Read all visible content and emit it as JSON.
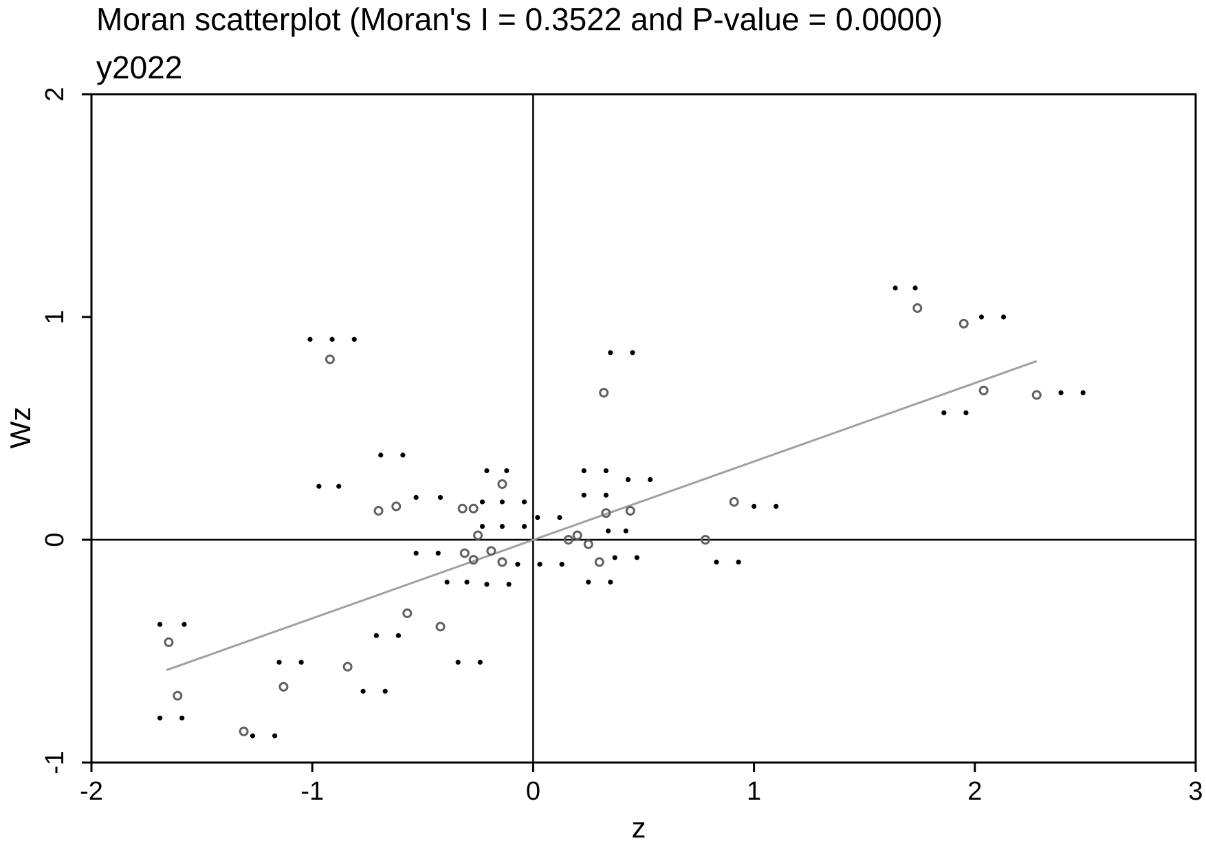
{
  "chart_data": {
    "type": "scatter",
    "title": "Moran scatterplot (Moran's I = 0.3522 and P-value = 0.0000)",
    "subtitle": "y2022",
    "xlabel": "z",
    "ylabel": "Wz",
    "xlim": [
      -2,
      3
    ],
    "ylim": [
      -1,
      2
    ],
    "x_ticks": [
      "-2",
      "-1",
      "0",
      "1",
      "2",
      "3"
    ],
    "y_ticks": [
      "-1",
      "0",
      "1",
      "2"
    ],
    "reference_lines": {
      "x": 0,
      "y": 0
    },
    "fit_line": {
      "x": [
        -1.66,
        2.28
      ],
      "y": [
        -0.585,
        0.802
      ],
      "slope": 0.3522
    },
    "grid": false,
    "legend": "none",
    "colors": {
      "dots": "#000000",
      "circles": "#606060",
      "fit_line": "#a0a0a0",
      "axes": "#000000"
    },
    "series": [
      {
        "marker": "dot",
        "points": [
          [
            -1.69,
            -0.38
          ],
          [
            -1.58,
            -0.38
          ],
          [
            -1.69,
            -0.8
          ],
          [
            -1.59,
            -0.8
          ],
          [
            -1.15,
            -0.55
          ],
          [
            -1.05,
            -0.55
          ],
          [
            -1.27,
            -0.88
          ],
          [
            -1.17,
            -0.88
          ],
          [
            -1.01,
            0.9
          ],
          [
            -0.91,
            0.9
          ],
          [
            -0.81,
            0.9
          ],
          [
            -0.97,
            0.24
          ],
          [
            -0.88,
            0.24
          ],
          [
            -0.69,
            0.38
          ],
          [
            -0.59,
            0.38
          ],
          [
            -0.53,
            0.19
          ],
          [
            -0.42,
            0.19
          ],
          [
            -0.53,
            -0.06
          ],
          [
            -0.43,
            -0.06
          ],
          [
            -0.71,
            -0.43
          ],
          [
            -0.61,
            -0.43
          ],
          [
            -0.77,
            -0.68
          ],
          [
            -0.67,
            -0.68
          ],
          [
            -0.34,
            -0.55
          ],
          [
            -0.24,
            -0.55
          ],
          [
            -0.39,
            -0.19
          ],
          [
            -0.3,
            -0.19
          ],
          [
            -0.21,
            -0.2
          ],
          [
            -0.11,
            -0.2
          ],
          [
            -0.21,
            0.31
          ],
          [
            -0.12,
            0.31
          ],
          [
            -0.23,
            0.17
          ],
          [
            -0.14,
            0.17
          ],
          [
            -0.04,
            0.17
          ],
          [
            -0.23,
            0.06
          ],
          [
            -0.14,
            0.06
          ],
          [
            -0.04,
            0.06
          ],
          [
            0.02,
            0.1
          ],
          [
            0.12,
            0.1
          ],
          [
            -0.07,
            -0.11
          ],
          [
            0.03,
            -0.11
          ],
          [
            0.13,
            -0.11
          ],
          [
            0.23,
            0.31
          ],
          [
            0.33,
            0.31
          ],
          [
            0.23,
            0.2
          ],
          [
            0.33,
            0.2
          ],
          [
            0.43,
            0.27
          ],
          [
            0.53,
            0.27
          ],
          [
            0.34,
            0.04
          ],
          [
            0.42,
            0.04
          ],
          [
            0.37,
            -0.08
          ],
          [
            0.47,
            -0.08
          ],
          [
            0.25,
            -0.19
          ],
          [
            0.35,
            -0.19
          ],
          [
            0.35,
            0.84
          ],
          [
            0.45,
            0.84
          ],
          [
            0.83,
            -0.1
          ],
          [
            0.93,
            -0.1
          ],
          [
            1.0,
            0.15
          ],
          [
            1.1,
            0.15
          ],
          [
            1.64,
            1.13
          ],
          [
            1.73,
            1.13
          ],
          [
            2.03,
            1.0
          ],
          [
            2.13,
            1.0
          ],
          [
            1.86,
            0.57
          ],
          [
            1.96,
            0.57
          ],
          [
            2.39,
            0.66
          ],
          [
            2.49,
            0.66
          ]
        ]
      },
      {
        "marker": "circle",
        "points": [
          [
            -1.65,
            -0.46
          ],
          [
            -1.61,
            -0.7
          ],
          [
            -1.31,
            -0.86
          ],
          [
            -1.13,
            -0.66
          ],
          [
            -0.92,
            0.81
          ],
          [
            -0.84,
            -0.57
          ],
          [
            -0.7,
            0.13
          ],
          [
            -0.62,
            0.15
          ],
          [
            -0.57,
            -0.33
          ],
          [
            -0.42,
            -0.39
          ],
          [
            -0.32,
            0.14
          ],
          [
            -0.27,
            0.14
          ],
          [
            -0.31,
            -0.06
          ],
          [
            -0.27,
            -0.09
          ],
          [
            -0.25,
            0.02
          ],
          [
            -0.19,
            -0.05
          ],
          [
            -0.14,
            0.25
          ],
          [
            -0.14,
            -0.1
          ],
          [
            0.16,
            0.0
          ],
          [
            0.2,
            0.02
          ],
          [
            0.25,
            -0.02
          ],
          [
            0.3,
            -0.1
          ],
          [
            0.32,
            0.66
          ],
          [
            0.33,
            0.12
          ],
          [
            0.44,
            0.13
          ],
          [
            0.78,
            0.0
          ],
          [
            0.91,
            0.17
          ],
          [
            1.74,
            1.04
          ],
          [
            1.95,
            0.97
          ],
          [
            2.04,
            0.67
          ],
          [
            2.28,
            0.65
          ]
        ]
      }
    ]
  }
}
